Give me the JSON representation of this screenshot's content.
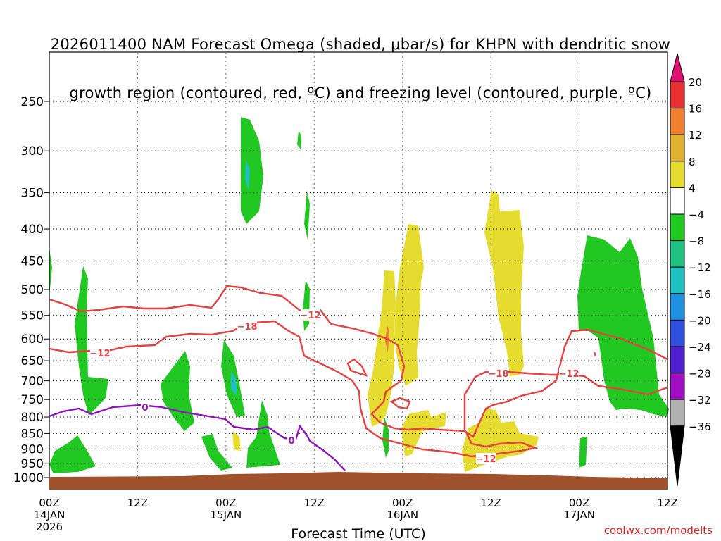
{
  "title_line1": "2026011400 NAM Forecast Omega (shaded, μbar/s) for KHPN with dendritic snow",
  "title_line2": "growth region (contoured, red, ºC) and freezing level (contoured, purple, ºC)",
  "source": "coolwx.com/modelts",
  "chart_data": {
    "type": "time-height cross section",
    "xlabel": "Forecast Time (UTC)",
    "x_ticks": [
      {
        "label": "00Z",
        "sublabel": "14JAN",
        "sublabel2": "2026",
        "hours": 0
      },
      {
        "label": "12Z",
        "sublabel": "",
        "sublabel2": "",
        "hours": 12
      },
      {
        "label": "00Z",
        "sublabel": "15JAN",
        "sublabel2": "",
        "hours": 24
      },
      {
        "label": "12Z",
        "sublabel": "",
        "sublabel2": "",
        "hours": 36
      },
      {
        "label": "00Z",
        "sublabel": "16JAN",
        "sublabel2": "",
        "hours": 48
      },
      {
        "label": "12Z",
        "sublabel": "",
        "sublabel2": "",
        "hours": 60
      },
      {
        "label": "00Z",
        "sublabel": "17JAN",
        "sublabel2": "",
        "hours": 72
      },
      {
        "label": "12Z",
        "sublabel": "",
        "sublabel2": "",
        "hours": 84
      }
    ],
    "y_ticks": [
      "250",
      "300",
      "350",
      "400",
      "450",
      "500",
      "550",
      "600",
      "650",
      "700",
      "750",
      "800",
      "850",
      "900",
      "950",
      "1000"
    ],
    "colorbar": {
      "labels": [
        "20",
        "16",
        "12",
        "8",
        "4",
        "−4",
        "−8",
        "−12",
        "−16",
        "−20",
        "−24",
        "−28",
        "−32",
        "−36"
      ],
      "colors": [
        "#e83030",
        "#ee8030",
        "#e0b030",
        "#e6dc30",
        "#ffffff",
        "#22c822",
        "#20c080",
        "#20c0c0",
        "#2090e0",
        "#3050e0",
        "#5020d0",
        "#a010c0",
        "#b0b0b0"
      ],
      "top_arrow_color": "#e01070",
      "bottom_arrow_color": "#000000"
    },
    "contour_labels": {
      "red": [
        "−12",
        "−18",
        "−12",
        "−18",
        "−12",
        "−12"
      ],
      "purple": [
        "0",
        "0"
      ]
    },
    "colors": {
      "omega_up": "#22c822",
      "omega_down": "#e6dc30",
      "dgz_contour": "#e84040",
      "freezing_contour": "#9010c0",
      "ground": "#a0522d"
    }
  }
}
